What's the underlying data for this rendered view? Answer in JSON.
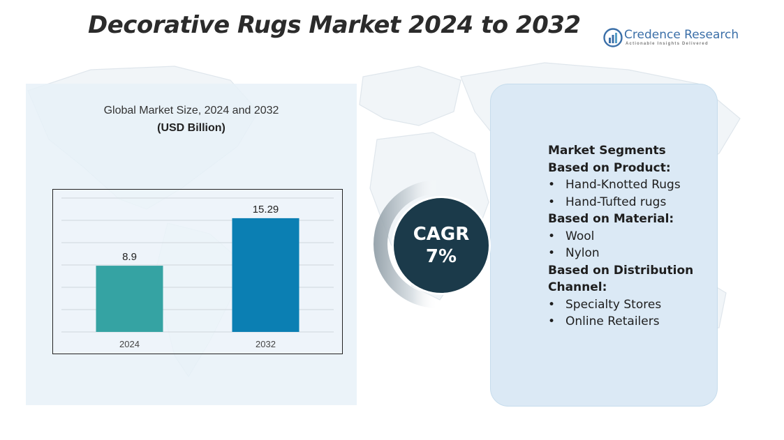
{
  "title": "Decorative Rugs Market 2024 to 2032",
  "logo": {
    "name": "Credence Research",
    "tagline": "Actionable Insights Delivered"
  },
  "chart_data": {
    "type": "bar",
    "title": "Global Market Size, 2024 and 2032",
    "unit": "(USD Billion)",
    "categories": [
      "2024",
      "2032"
    ],
    "values": [
      8.9,
      15.29
    ],
    "value_labels": [
      "8.9",
      "15.29"
    ],
    "colors": [
      "#35a3a3",
      "#0b7fb3"
    ],
    "ylim": [
      0,
      18
    ],
    "grid": true,
    "legend": "none"
  },
  "cagr": {
    "label": "CAGR",
    "value": "7%"
  },
  "segments": {
    "heading1": "Market Segments",
    "heading2": "Based on Product:",
    "product": [
      "Hand-Knotted Rugs",
      "Hand-Tufted rugs"
    ],
    "material_heading": "Based on Material:",
    "material": [
      "Wool",
      "Nylon"
    ],
    "distribution_heading_1": "Based on Distribution",
    "distribution_heading_2": "Channel:",
    "distribution": [
      "Specialty Stores",
      "Online Retailers"
    ]
  },
  "colors": {
    "panel": "#e8f1f8",
    "cagr_circle": "#1b3a4a",
    "title": "#2b2b2b",
    "brand": "#3b6fa8"
  }
}
